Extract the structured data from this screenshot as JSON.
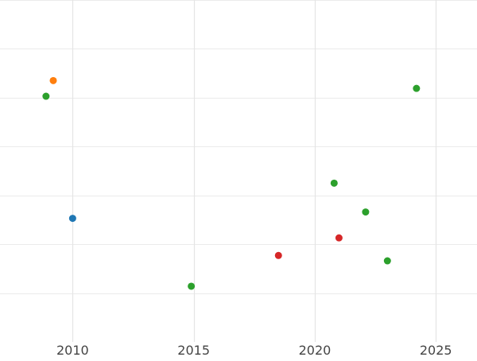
{
  "chart_data": {
    "type": "scatter",
    "title": "",
    "xlabel": "",
    "ylabel": "",
    "grid": true,
    "legend": "none",
    "xlim": [
      2007.0,
      2026.7
    ],
    "ylim": [
      0,
      7
    ],
    "x_ticks": [
      2010,
      2015,
      2020,
      2025
    ],
    "x_tick_labels": [
      "2010",
      "2015",
      "2020",
      "2025"
    ],
    "y_gridlines": [
      1,
      2,
      3,
      4,
      5,
      6,
      7
    ],
    "colors": {
      "blue": "#1f77b4",
      "orange": "#ff7f0e",
      "green": "#2ca02c",
      "red": "#d62728"
    },
    "points": [
      {
        "x": 2009.2,
        "y": 5.35,
        "color": "#ff7f0e"
      },
      {
        "x": 2008.9,
        "y": 5.03,
        "color": "#2ca02c"
      },
      {
        "x": 2010.0,
        "y": 2.53,
        "color": "#1f77b4"
      },
      {
        "x": 2014.9,
        "y": 1.14,
        "color": "#2ca02c"
      },
      {
        "x": 2018.5,
        "y": 1.77,
        "color": "#d62728"
      },
      {
        "x": 2020.8,
        "y": 3.25,
        "color": "#2ca02c"
      },
      {
        "x": 2021.0,
        "y": 2.13,
        "color": "#d62728"
      },
      {
        "x": 2022.1,
        "y": 2.66,
        "color": "#2ca02c"
      },
      {
        "x": 2023.0,
        "y": 1.66,
        "color": "#2ca02c"
      },
      {
        "x": 2024.2,
        "y": 5.19,
        "color": "#2ca02c"
      }
    ]
  }
}
